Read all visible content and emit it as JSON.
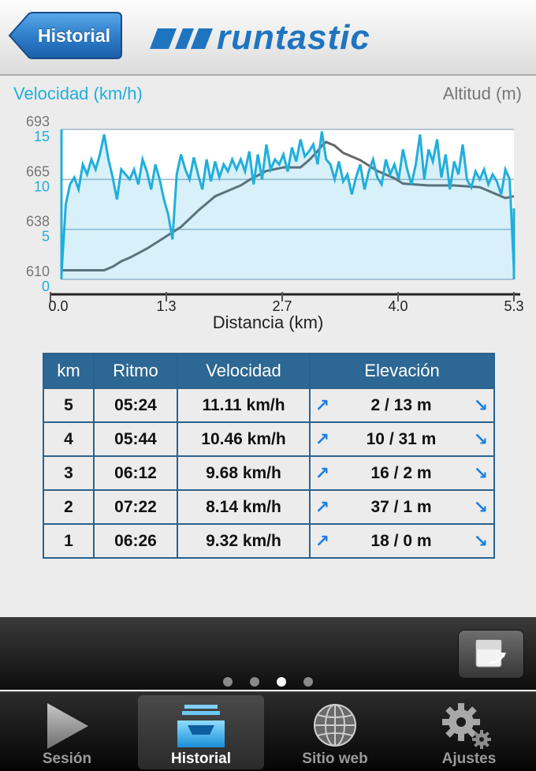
{
  "header": {
    "back_label": "Historial",
    "brand": "runtastic"
  },
  "chart": {
    "speed_title": "Velocidad (km/h)",
    "altitude_title": "Altitud (m)",
    "xlabel": "Distancia (km)"
  },
  "chart_data": {
    "type": "area",
    "xlabel": "Distancia (km)",
    "x_ticks": [
      "0.0",
      "1.3",
      "2.7",
      "4.0",
      "5.3"
    ],
    "xlim": [
      0,
      5.3
    ],
    "y_left": {
      "label": "Velocidad (km/h)",
      "ticks": [
        "15",
        "10",
        "5",
        "0"
      ],
      "ylim": [
        0,
        15
      ]
    },
    "y_right": {
      "label": "Altitud (m)",
      "ticks": [
        "693",
        "665",
        "638",
        "610"
      ],
      "ylim": [
        610,
        693
      ]
    },
    "series": [
      {
        "name": "Velocidad (km/h)",
        "color": "#22aedb",
        "x": [
          0.0,
          0.05,
          0.1,
          0.15,
          0.2,
          0.25,
          0.3,
          0.35,
          0.4,
          0.45,
          0.5,
          0.55,
          0.6,
          0.65,
          0.7,
          0.75,
          0.8,
          0.85,
          0.9,
          0.95,
          1.0,
          1.05,
          1.1,
          1.15,
          1.2,
          1.25,
          1.3,
          1.35,
          1.4,
          1.45,
          1.5,
          1.55,
          1.6,
          1.65,
          1.7,
          1.75,
          1.8,
          1.85,
          1.9,
          1.95,
          2.0,
          2.05,
          2.1,
          2.15,
          2.2,
          2.25,
          2.3,
          2.35,
          2.4,
          2.45,
          2.5,
          2.55,
          2.6,
          2.65,
          2.7,
          2.75,
          2.8,
          2.85,
          2.9,
          2.95,
          3.0,
          3.05,
          3.1,
          3.15,
          3.2,
          3.25,
          3.3,
          3.35,
          3.4,
          3.45,
          3.5,
          3.55,
          3.6,
          3.65,
          3.7,
          3.75,
          3.8,
          3.85,
          3.9,
          3.95,
          4.0,
          4.05,
          4.1,
          4.15,
          4.2,
          4.25,
          4.3,
          4.35,
          4.4,
          4.45,
          4.5,
          4.55,
          4.6,
          4.65,
          4.7,
          4.75,
          4.8,
          4.85,
          4.9,
          4.95,
          5.0,
          5.05,
          5.1,
          5.15,
          5.2,
          5.25,
          5.3
        ],
        "values": [
          0.5,
          7.5,
          9.5,
          10.2,
          9.0,
          11.5,
          10.5,
          12.0,
          11.0,
          12.5,
          14.5,
          12.0,
          10.2,
          8.0,
          11.0,
          10.5,
          10.0,
          11.0,
          9.5,
          12.0,
          10.8,
          9.0,
          11.5,
          10.0,
          8.0,
          6.5,
          4.0,
          10.5,
          12.5,
          11.0,
          10.0,
          12.2,
          10.5,
          9.0,
          12.0,
          9.8,
          11.8,
          10.2,
          11.5,
          10.8,
          12.0,
          11.0,
          12.0,
          10.8,
          12.8,
          9.5,
          12.5,
          10.0,
          13.5,
          11.0,
          12.0,
          11.5,
          12.5,
          10.8,
          13.2,
          11.8,
          14.0,
          12.3,
          12.8,
          13.5,
          11.5,
          14.8,
          12.0,
          11.5,
          10.0,
          11.8,
          9.8,
          10.5,
          8.5,
          10.2,
          11.5,
          9.0,
          10.8,
          12.0,
          10.2,
          9.5,
          12.0,
          10.5,
          11.5,
          10.0,
          13.0,
          11.0,
          9.5,
          11.5,
          14.5,
          10.0,
          13.0,
          11.8,
          14.0,
          10.2,
          12.5,
          9.0,
          11.8,
          10.5,
          13.5,
          10.0,
          9.2,
          10.8,
          10.0,
          11.0,
          9.5,
          10.5,
          9.8,
          8.5,
          11.0,
          10.0,
          1.0
        ],
        "note": ""
      },
      {
        "name": "Altitud (m)",
        "color": "#666666",
        "x": [
          0.0,
          0.3,
          0.5,
          0.6,
          0.7,
          0.8,
          1.0,
          1.2,
          1.4,
          1.6,
          1.8,
          2.0,
          2.1,
          2.2,
          2.4,
          2.6,
          2.8,
          2.9,
          3.0,
          3.05,
          3.1,
          3.2,
          3.3,
          3.5,
          3.7,
          3.9,
          4.0,
          4.3,
          4.6,
          4.9,
          5.1,
          5.2,
          5.3
        ],
        "values": [
          615,
          615,
          615,
          617,
          620,
          622,
          627,
          633,
          639,
          648,
          656,
          660,
          662,
          665,
          670,
          672,
          672,
          676,
          681,
          684,
          686,
          684,
          680,
          676,
          670,
          666,
          663,
          662,
          662,
          661,
          657,
          655,
          656
        ]
      }
    ]
  },
  "table": {
    "headers": [
      "km",
      "Ritmo",
      "Velocidad",
      "Elevación"
    ],
    "rows": [
      {
        "km": "5",
        "pace": "05:24",
        "speed": "11.11 km/h",
        "elev": "2 / 13 m"
      },
      {
        "km": "4",
        "pace": "05:44",
        "speed": "10.46 km/h",
        "elev": "10 / 31 m"
      },
      {
        "km": "3",
        "pace": "06:12",
        "speed": "9.68 km/h",
        "elev": "16 / 2 m"
      },
      {
        "km": "2",
        "pace": "07:22",
        "speed": "8.14 km/h",
        "elev": "37 / 1 m"
      },
      {
        "km": "1",
        "pace": "06:26",
        "speed": "9.32 km/h",
        "elev": "18 / 0 m"
      }
    ],
    "arrow_up": "↗",
    "arrow_down": "↘"
  },
  "pager": {
    "count": 4,
    "active_index": 2
  },
  "tabs": [
    {
      "label": "Sesión",
      "icon": "play-icon"
    },
    {
      "label": "Historial",
      "icon": "inbox-tray-icon"
    },
    {
      "label": "Sitio web",
      "icon": "globe-icon"
    },
    {
      "label": "Ajustes",
      "icon": "gear-icon"
    }
  ],
  "colors": {
    "accent": "#22aedb",
    "table_header": "#2d6793",
    "brand": "#1f74c0"
  }
}
